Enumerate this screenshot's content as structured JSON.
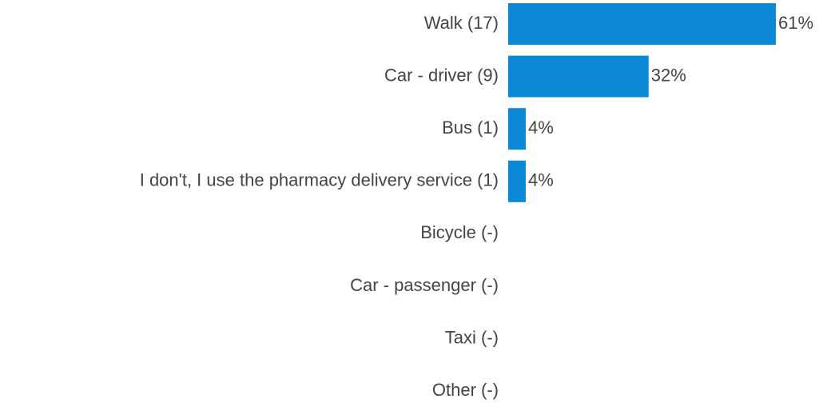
{
  "chart_data": {
    "type": "hbar",
    "categories": [
      "Walk (17)",
      "Car - driver (9)",
      "Bus (1)",
      "I don't, I use the pharmacy delivery service (1)",
      "Bicycle (-)",
      "Car - passenger (-)",
      "Taxi (-)",
      "Other (-)"
    ],
    "values": [
      61,
      32,
      4,
      4,
      null,
      null,
      null,
      null
    ],
    "value_labels": [
      "61%",
      "32%",
      "4%",
      "4%",
      null,
      null,
      null,
      null
    ],
    "color": "#0b89d6"
  }
}
